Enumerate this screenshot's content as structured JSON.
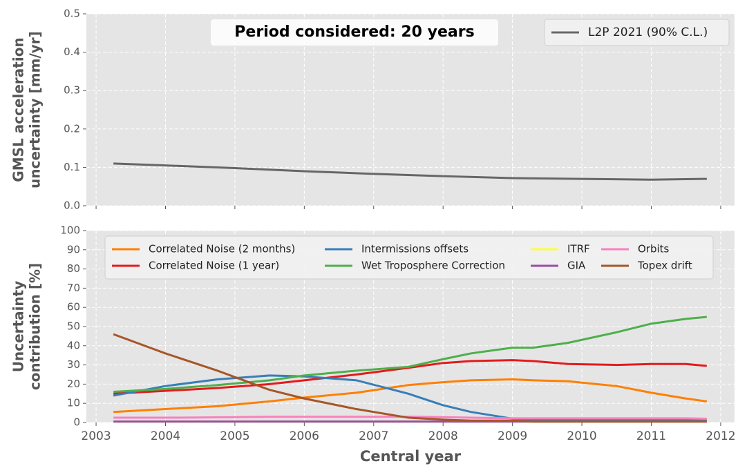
{
  "chart_data": [
    {
      "type": "line",
      "annotation": "Period considered: 20 years",
      "ylabel": [
        "GMSL acceleration",
        "uncertainty [mm/yr]"
      ],
      "x": [
        2003.25,
        2004,
        2005,
        2006,
        2007,
        2008,
        2009,
        2010,
        2011,
        2011.8
      ],
      "series": [
        {
          "name": "L2P 2021 (90% C.L.)",
          "color": "#666666",
          "values": [
            0.11,
            0.105,
            0.098,
            0.09,
            0.083,
            0.077,
            0.072,
            0.07,
            0.068,
            0.07
          ]
        }
      ],
      "xlim": [
        2002.86,
        2012.2
      ],
      "xticks": [
        2003,
        2004,
        2005,
        2006,
        2007,
        2008,
        2009,
        2010,
        2011,
        2012
      ],
      "show_xtick_labels": false,
      "ylim": [
        0,
        0.5
      ],
      "yticks": [
        {
          "value": 0,
          "label": "0.0"
        },
        0.1,
        0.2,
        0.3,
        0.4,
        0.5
      ],
      "grid": true,
      "legend": "upper right",
      "legend_columns": 1
    },
    {
      "type": "line",
      "ylabel": [
        "Uncertainty",
        "contribution [%]"
      ],
      "xlabel": "Central year",
      "x": [
        2003.25,
        2004,
        2004.75,
        2005.5,
        2006,
        2006.75,
        2007.5,
        2008,
        2008.4,
        2009,
        2009.3,
        2009.8,
        2010.5,
        2011,
        2011.5,
        2011.8
      ],
      "series": [
        {
          "name": "Correlated Noise (2 months)",
          "color": "#ff7f00",
          "values": [
            5.5,
            7,
            8.5,
            11,
            13,
            15.5,
            19.5,
            21,
            22,
            22.5,
            22,
            21.5,
            19,
            15.5,
            12.5,
            11
          ]
        },
        {
          "name": "Correlated Noise (1 year)",
          "color": "#e41a1c",
          "values": [
            15,
            16.5,
            18,
            20,
            22,
            25,
            28.5,
            31,
            32,
            32.5,
            32,
            30.5,
            30,
            30.5,
            30.5,
            29.5
          ]
        },
        {
          "name": "Intermissions offsets",
          "color": "#377eb8",
          "values": [
            14,
            19,
            22.5,
            24.5,
            24,
            22,
            15,
            9,
            5.5,
            2,
            1.5,
            1.5,
            1.5,
            1.5,
            1.5,
            1.5
          ]
        },
        {
          "name": "Wet Troposphere Correction",
          "color": "#4daf4a",
          "values": [
            16,
            17.5,
            19.5,
            22,
            24.5,
            27,
            29,
            33,
            36,
            39,
            39,
            41.5,
            47,
            51.5,
            54,
            55
          ]
        },
        {
          "name": "ITRF",
          "color": "#ffff33",
          "values": [
            0.5,
            0.5,
            0.5,
            0.5,
            0.5,
            0.5,
            0.5,
            0.5,
            0.5,
            0.5,
            0.5,
            0.5,
            0.5,
            0.5,
            0.5,
            0.5
          ]
        },
        {
          "name": "GIA",
          "color": "#984ea3",
          "values": [
            0.5,
            0.5,
            0.5,
            0.5,
            0.5,
            0.5,
            0.5,
            0.5,
            0.5,
            0.5,
            0.5,
            0.5,
            0.5,
            0.5,
            0.5,
            0.5
          ]
        },
        {
          "name": "Orbits",
          "color": "#f781bf",
          "values": [
            2.5,
            2.5,
            2.7,
            3,
            3,
            3,
            3,
            2.8,
            2.5,
            2.2,
            2.2,
            2.2,
            2.2,
            2.2,
            2.2,
            2
          ]
        },
        {
          "name": "Topex drift",
          "color": "#a65628",
          "values": [
            46,
            36,
            27,
            17,
            12.5,
            7,
            2.5,
            1.5,
            1,
            1,
            0.5,
            0.5,
            0.5,
            0.5,
            0.5,
            0.5
          ]
        }
      ],
      "xlim": [
        2002.86,
        2012.2
      ],
      "xticks": [
        2003,
        2004,
        2005,
        2006,
        2007,
        2008,
        2009,
        2010,
        2011,
        2012
      ],
      "show_xtick_labels": true,
      "ylim": [
        0,
        100
      ],
      "yticks": [
        0,
        10,
        20,
        30,
        40,
        50,
        60,
        70,
        80,
        90,
        100
      ],
      "grid": true,
      "legend": "upper center",
      "legend_columns": 4
    }
  ]
}
